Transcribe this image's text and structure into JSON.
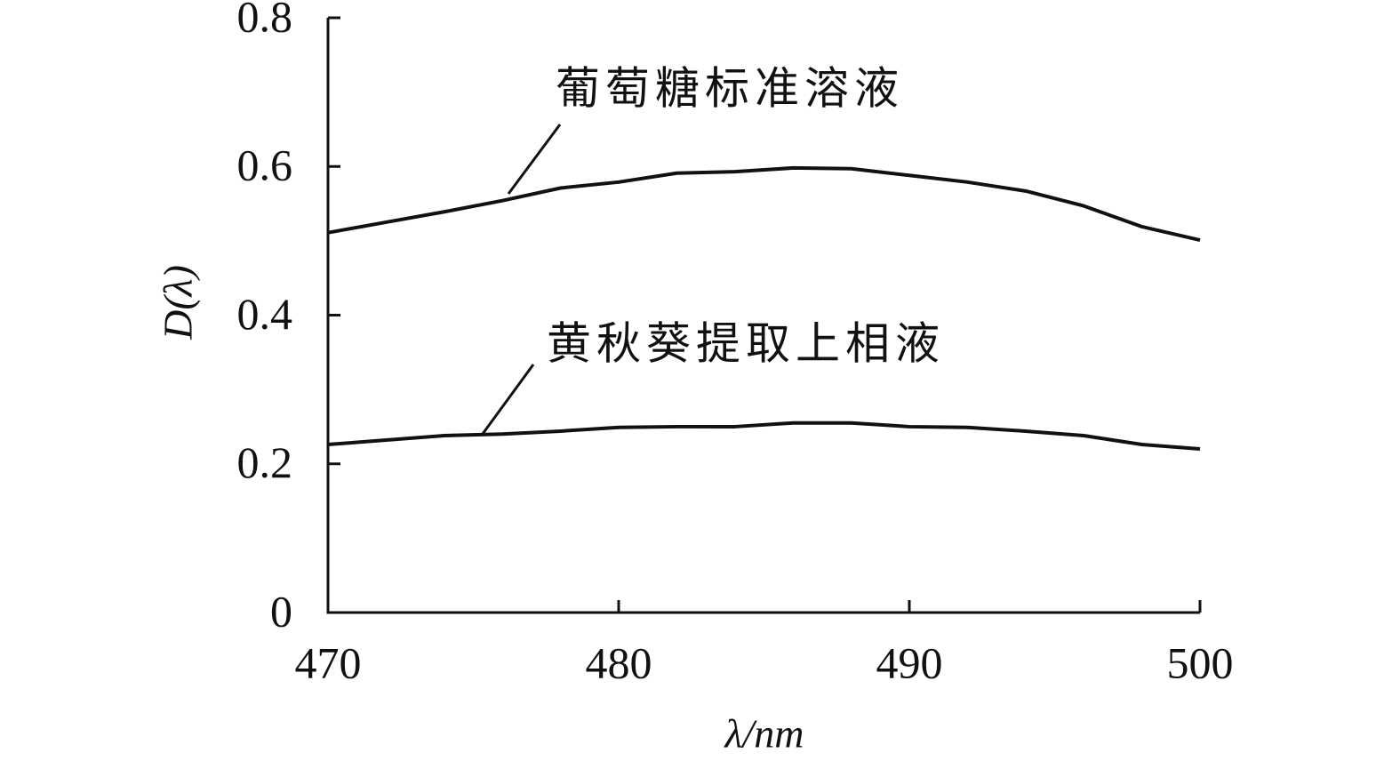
{
  "chart_data": {
    "type": "line",
    "x_label": "λ/nm",
    "y_label": "D(λ)",
    "x": [
      470,
      472,
      474,
      476,
      478,
      480,
      482,
      484,
      486,
      488,
      490,
      492,
      494,
      496,
      498,
      500
    ],
    "series": [
      {
        "name": "葡萄糖标准溶液",
        "color": "#111111",
        "values": [
          0.511,
          0.525,
          0.539,
          0.554,
          0.571,
          0.579,
          0.591,
          0.593,
          0.598,
          0.597,
          0.588,
          0.579,
          0.567,
          0.547,
          0.519,
          0.501
        ]
      },
      {
        "name": "黄秋葵提取上相液",
        "color": "#111111",
        "values": [
          0.226,
          0.232,
          0.238,
          0.24,
          0.244,
          0.249,
          0.25,
          0.25,
          0.255,
          0.255,
          0.25,
          0.249,
          0.244,
          0.238,
          0.226,
          0.22
        ]
      }
    ],
    "xlim": [
      470,
      500
    ],
    "xticks": [
      470,
      480,
      490,
      500
    ],
    "ylim": [
      0,
      0.8
    ],
    "yticks": [
      0,
      0.2,
      0.4,
      0.6,
      0.8
    ]
  }
}
